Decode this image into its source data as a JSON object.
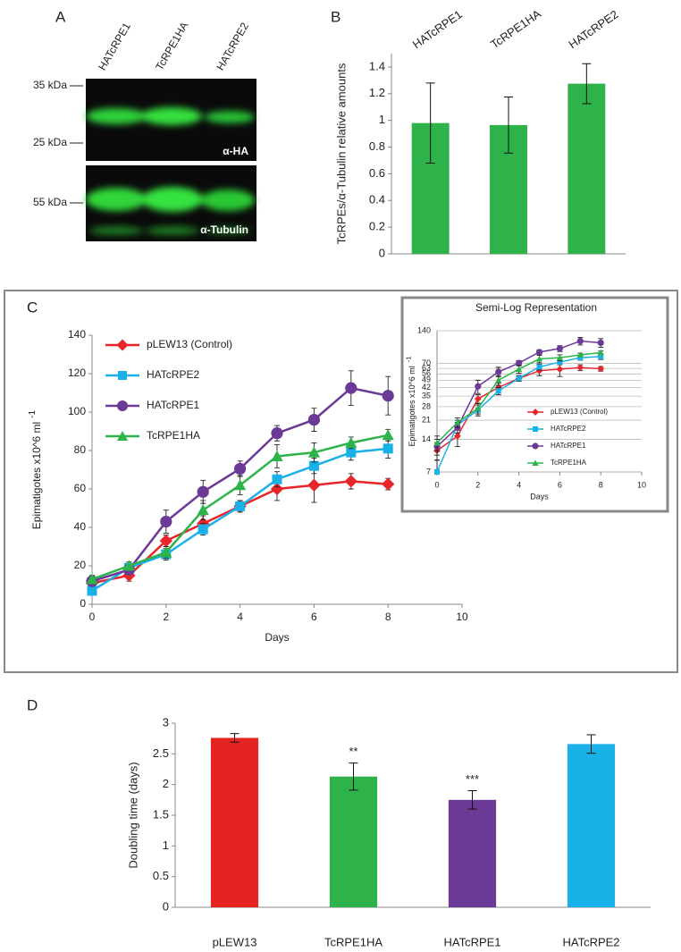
{
  "blot": {
    "panel": "A",
    "lanes": [
      "HATcRPE1",
      "TcRPE1HA",
      "HATcRPE2"
    ],
    "markers": [
      "35 kDa",
      "25 kDa",
      "55 kDa"
    ],
    "antibodies": [
      "α-HA",
      "α-Tubulin"
    ]
  },
  "chart_data": [
    {
      "panel": "B",
      "type": "bar",
      "categories": [
        "HATcRPE1",
        "TcRPE1HA",
        "HATcRPE2"
      ],
      "values": [
        0.98,
        0.965,
        1.275
      ],
      "errors": [
        0.3,
        0.21,
        0.15
      ],
      "color": "#2db34a",
      "ylabel": "TcRPEs/α-Tubulin relative amounts",
      "ylim": [
        0,
        1.5
      ],
      "yticks": [
        0,
        0.2,
        0.4,
        0.6,
        0.8,
        1,
        1.2,
        1.4
      ],
      "category_labels_position": "top"
    },
    {
      "panel": "C",
      "type": "line",
      "x": [
        0,
        1,
        2,
        3,
        4,
        5,
        6,
        7,
        8
      ],
      "series": [
        {
          "name": "pLEW13 (Control)",
          "color": "#e8262a",
          "marker": "diamond",
          "values": [
            11,
            15,
            33,
            42,
            51,
            60,
            62,
            64,
            62.5
          ],
          "errors": [
            2,
            3,
            3,
            4,
            3,
            6,
            9,
            4,
            3
          ]
        },
        {
          "name": "HATcRPE2",
          "color": "#1ab0e8",
          "marker": "square",
          "values": [
            7,
            19,
            26,
            39,
            51,
            65,
            72,
            79,
            81
          ],
          "errors": [
            2,
            2,
            3,
            3,
            3,
            4,
            4,
            4,
            5
          ]
        },
        {
          "name": "HATcRPE1",
          "color": "#6b3996",
          "marker": "circle",
          "values": [
            12,
            18,
            43,
            58.5,
            70.5,
            89,
            96,
            112.5,
            108.5
          ],
          "errors": [
            2,
            2,
            6,
            6,
            4,
            4,
            6,
            9,
            10
          ]
        },
        {
          "name": "TcRPE1HA",
          "color": "#2db34a",
          "marker": "triangle",
          "values": [
            13,
            20,
            27,
            49,
            62,
            77,
            79,
            84,
            88
          ],
          "errors": [
            2,
            2,
            3,
            5,
            5,
            6,
            5,
            3,
            3
          ]
        }
      ],
      "xlabel": "Days",
      "ylabel": "Epimatigotes x10^6 ml",
      "ylabel_superscript": "-1",
      "xlim": [
        0,
        10
      ],
      "xticks": [
        0,
        2,
        4,
        6,
        8,
        10
      ],
      "ylim": [
        0,
        140
      ],
      "yticks": [
        0,
        20,
        40,
        60,
        80,
        100,
        120,
        140
      ],
      "grid": false,
      "legend": "upper left"
    },
    {
      "type": "line",
      "title": "Semi-Log Representation",
      "log_scale": true,
      "x": [
        0,
        1,
        2,
        3,
        4,
        5,
        6,
        7,
        8
      ],
      "series": [
        {
          "name": "pLEW13 (Control)",
          "color": "#e8262a",
          "marker": "diamond",
          "values": [
            11,
            15,
            33,
            42,
            51,
            60,
            62,
            64,
            62.5
          ],
          "errors": [
            2,
            3,
            3,
            4,
            3,
            6,
            9,
            4,
            3
          ]
        },
        {
          "name": "HATcRPE2",
          "color": "#1ab0e8",
          "marker": "square",
          "values": [
            7,
            19,
            26,
            39,
            51,
            65,
            72,
            79,
            81
          ],
          "errors": [
            2,
            2,
            3,
            3,
            3,
            4,
            4,
            4,
            5
          ]
        },
        {
          "name": "HATcRPE1",
          "color": "#6b3996",
          "marker": "circle",
          "values": [
            12,
            18,
            43,
            58.5,
            70.5,
            89,
            96,
            112.5,
            108.5
          ],
          "errors": [
            2,
            2,
            6,
            6,
            4,
            4,
            6,
            9,
            10
          ]
        },
        {
          "name": "TcRPE1HA",
          "color": "#2db34a",
          "marker": "triangle",
          "values": [
            13,
            20,
            27,
            49,
            62,
            77,
            79,
            84,
            88
          ],
          "errors": [
            2,
            2,
            3,
            5,
            5,
            6,
            5,
            3,
            3
          ]
        }
      ],
      "xlabel": "Days",
      "ylabel": "Epimatigotes x10^6 ml",
      "ylabel_superscript": "-1",
      "xlim": [
        0,
        10
      ],
      "xticks": [
        0,
        2,
        4,
        6,
        8,
        10
      ],
      "ylim": [
        7,
        140
      ],
      "yticks": [
        7,
        14,
        21,
        28,
        35,
        42,
        49,
        56,
        63,
        70,
        140
      ],
      "grid": true,
      "legend": "lower right"
    },
    {
      "panel": "D",
      "type": "bar",
      "categories": [
        "pLEW13",
        "TcRPE1HA",
        "HATcRPE1",
        "HATcRPE2"
      ],
      "values": [
        2.76,
        2.13,
        1.75,
        2.66
      ],
      "errors": [
        0.07,
        0.22,
        0.15,
        0.15
      ],
      "colors": [
        "#e52421",
        "#2db34a",
        "#6b3996",
        "#1ab0e8"
      ],
      "significance": [
        null,
        "**",
        "***",
        null
      ],
      "ylabel": "Doubling time (days)",
      "ylim": [
        0,
        3
      ],
      "yticks": [
        0,
        0.5,
        1,
        1.5,
        2,
        2.5,
        3
      ],
      "category_labels_position": "bottom"
    }
  ]
}
